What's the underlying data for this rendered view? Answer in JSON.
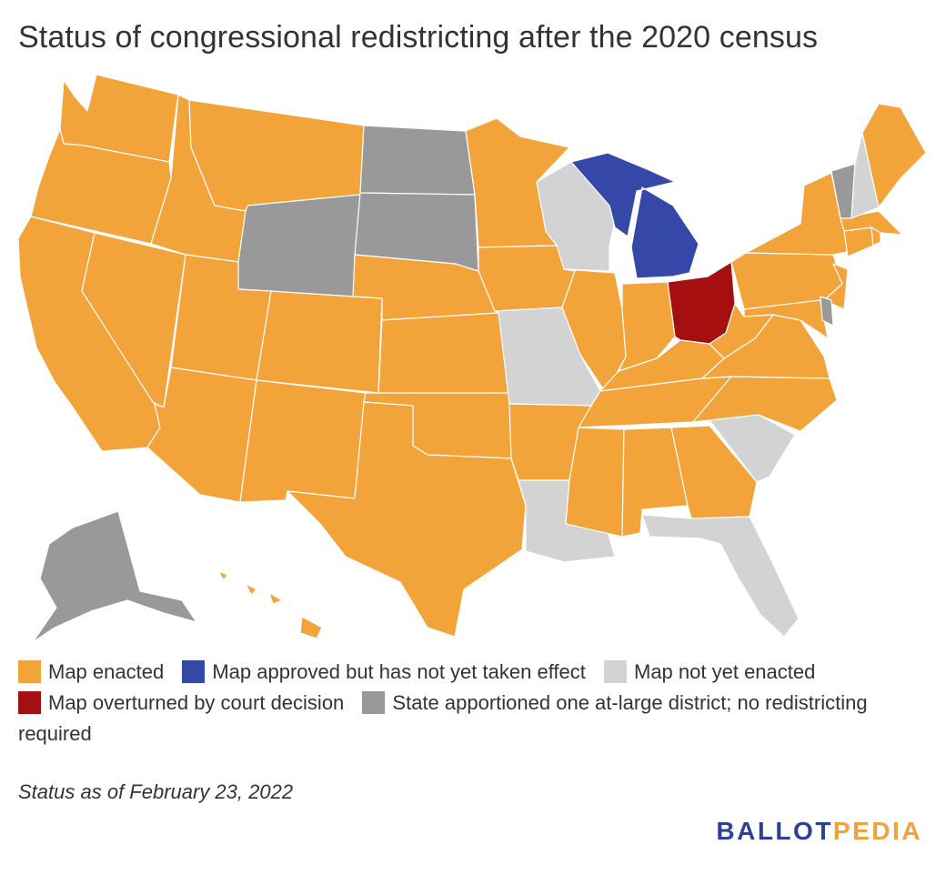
{
  "title": "Status of congressional redistricting after the 2020 census",
  "colors": {
    "map_enacted": "#f2a33a",
    "map_approved_not_effective": "#3548a8",
    "map_not_yet_enacted": "#d3d3d3",
    "map_overturned": "#a50f0f",
    "at_large": "#999999",
    "logo_ballot": "#2c3f99",
    "logo_pedia": "#f2a23c"
  },
  "legend": [
    {
      "label": "Map enacted",
      "color": "#f2a33a"
    },
    {
      "label": "Map approved but has not yet taken effect",
      "color": "#3548a8"
    },
    {
      "label": "Map not yet enacted",
      "color": "#d3d3d3"
    },
    {
      "label": "Map overturned by court decision",
      "color": "#a50f0f"
    },
    {
      "label": "State apportioned one at-large district; no redistricting required",
      "color": "#999999"
    }
  ],
  "state_status": {
    "map_approved_not_effective": [
      "Michigan"
    ],
    "map_not_yet_enacted": [
      "Wisconsin",
      "Missouri",
      "Louisiana",
      "Florida",
      "South Carolina",
      "New Hampshire"
    ],
    "map_overturned": [
      "Ohio"
    ],
    "at_large": [
      "Alaska",
      "Wyoming",
      "North Dakota",
      "South Dakota",
      "Vermont",
      "Delaware"
    ]
  },
  "footnote": "Status as of February 23, 2022",
  "logo": {
    "part1": "BALLOT",
    "part2": "PEDIA"
  }
}
